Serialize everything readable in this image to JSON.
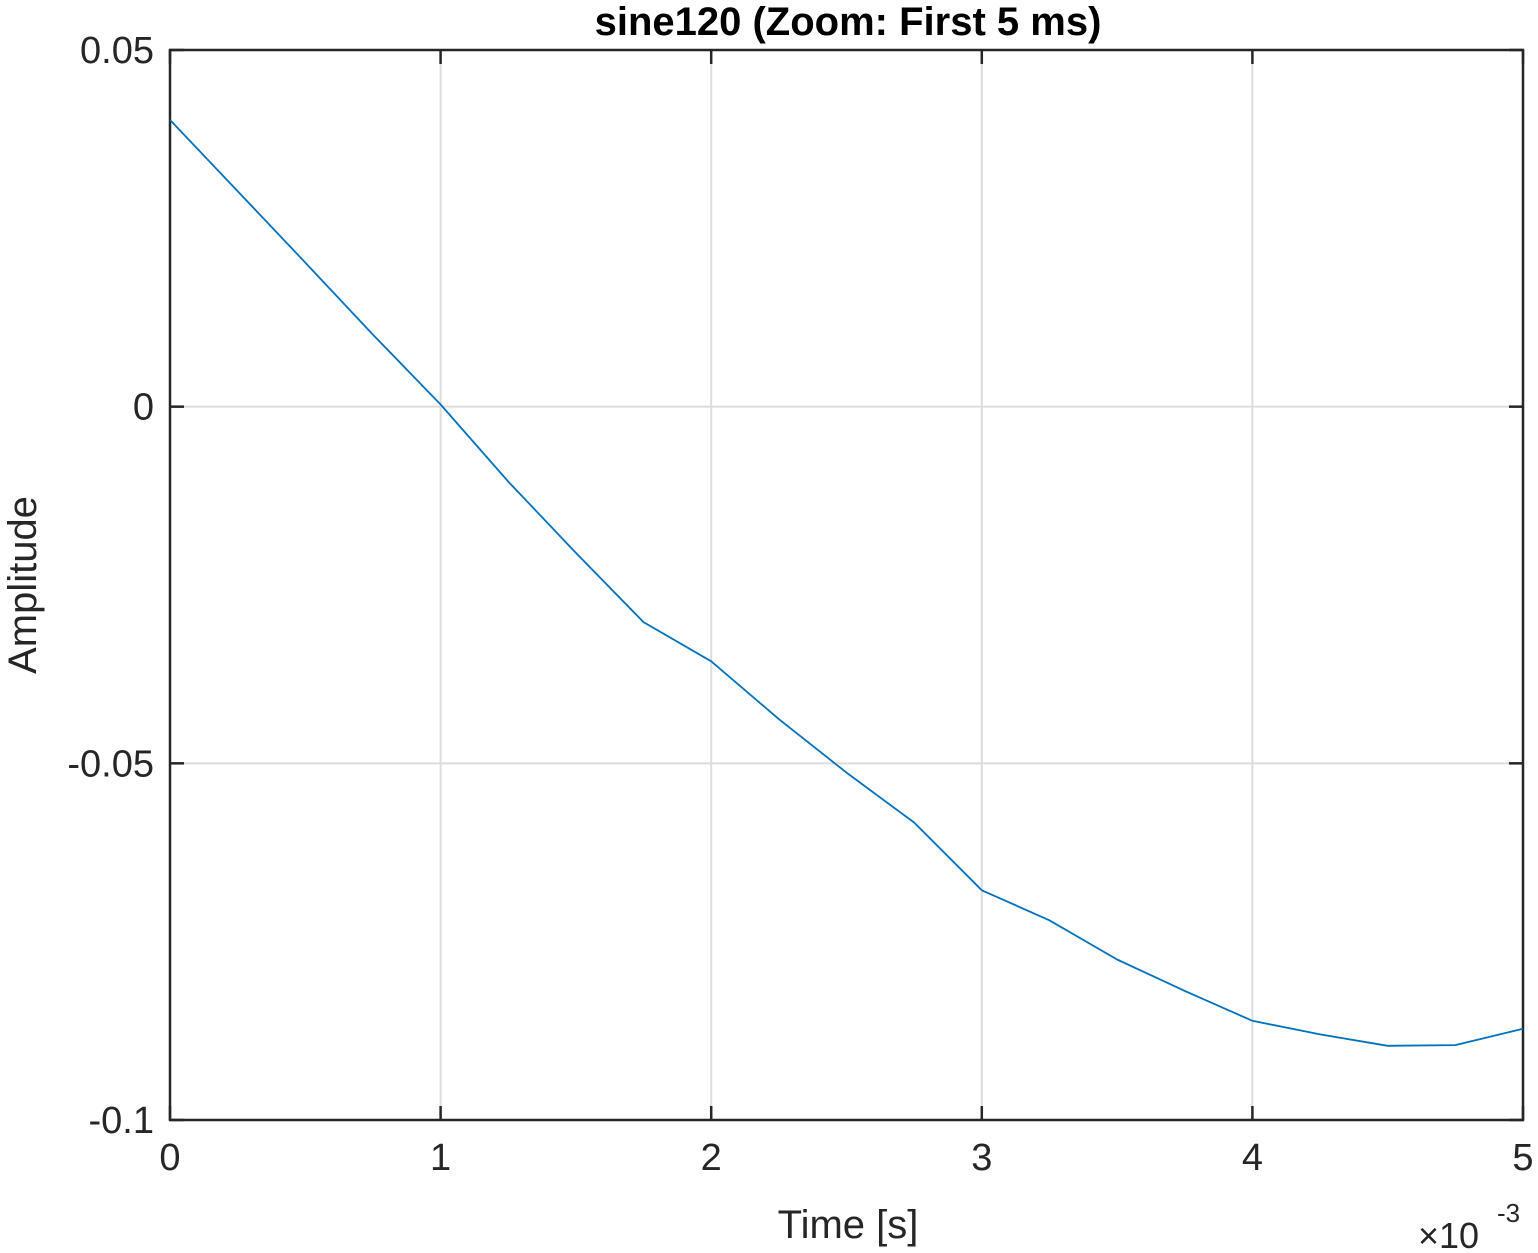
{
  "chart_data": {
    "type": "line",
    "title": "sine120 (Zoom: First 5 ms)",
    "xlabel": "Time [s]",
    "ylabel": "Amplitude",
    "xlim": [
      0,
      0.005
    ],
    "ylim": [
      -0.1,
      0.05
    ],
    "x_scale_exponent": {
      "base": "×10",
      "power": "-3"
    },
    "x_ticks": [
      {
        "value": 0,
        "label": "0"
      },
      {
        "value": 0.001,
        "label": "1"
      },
      {
        "value": 0.002,
        "label": "2"
      },
      {
        "value": 0.003,
        "label": "3"
      },
      {
        "value": 0.004,
        "label": "4"
      },
      {
        "value": 0.005,
        "label": "5"
      }
    ],
    "y_ticks": [
      {
        "value": 0.05,
        "label": "0.05"
      },
      {
        "value": 0,
        "label": "0"
      },
      {
        "value": -0.05,
        "label": "-0.05"
      },
      {
        "value": -0.1,
        "label": "-0.1"
      }
    ],
    "grid": true,
    "line_color": "#0072BD",
    "series": [
      {
        "x": [
          0,
          0.00025,
          0.0005,
          0.00075,
          0.001,
          0.00125,
          0.0015,
          0.00175,
          0.002,
          0.00225,
          0.0025,
          0.00275,
          0.003,
          0.00325,
          0.0035,
          0.00375,
          0.004,
          0.00425,
          0.0045,
          0.00475,
          0.005
        ],
        "y": [
          0.0402,
          0.0302,
          0.0202,
          0.0101,
          0.0003,
          -0.0105,
          -0.0205,
          -0.0302,
          -0.0357,
          -0.0438,
          -0.0513,
          -0.0583,
          -0.0678,
          -0.072,
          -0.0775,
          -0.0819,
          -0.0861,
          -0.088,
          -0.0896,
          -0.0895,
          -0.0872
        ]
      }
    ]
  }
}
